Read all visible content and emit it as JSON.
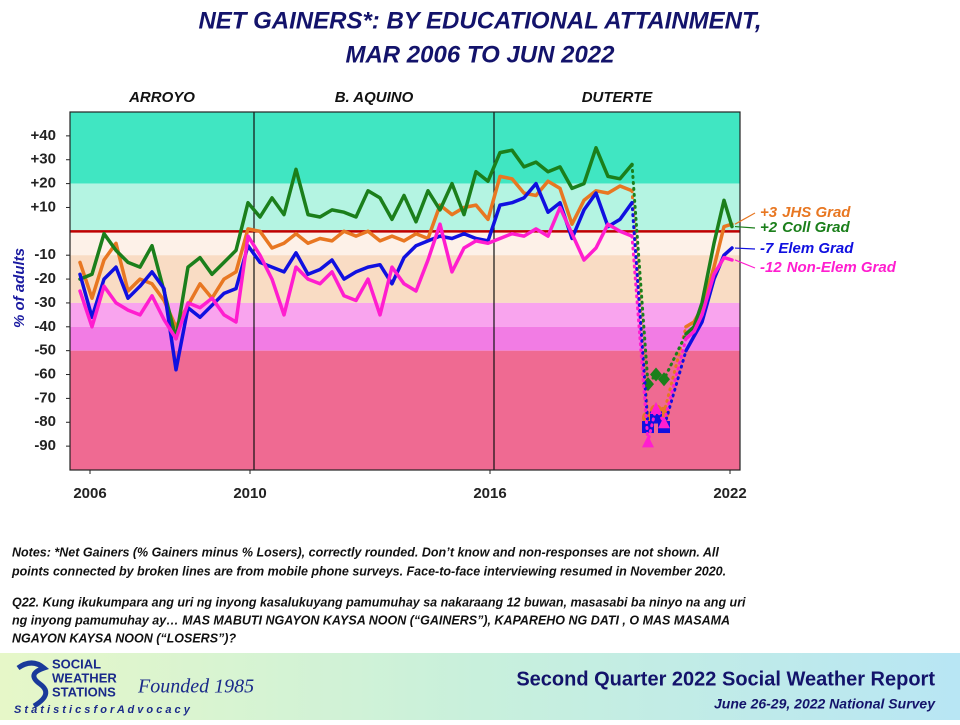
{
  "chart_data": {
    "type": "line",
    "title": [
      "NET GAINERS*: BY EDUCATIONAL ATTAINMENT,",
      "MAR 2006 TO JUN 2022"
    ],
    "y_label": "% of adults",
    "eras": [
      "ARROYO",
      "B. AQUINO",
      "DUTERTE"
    ],
    "dividers": [
      2010.1,
      2016.1
    ],
    "x": [
      2005.75,
      2006.05,
      2006.35,
      2006.65,
      2006.95,
      2007.25,
      2007.55,
      2007.85,
      2008.15,
      2008.45,
      2008.75,
      2009.05,
      2009.35,
      2009.65,
      2009.95,
      2010.25,
      2010.55,
      2010.85,
      2011.15,
      2011.45,
      2011.75,
      2012.05,
      2012.35,
      2012.65,
      2012.95,
      2013.25,
      2013.55,
      2013.85,
      2014.15,
      2014.45,
      2014.75,
      2015.05,
      2015.35,
      2015.65,
      2015.95,
      2016.25,
      2016.55,
      2016.85,
      2017.15,
      2017.45,
      2017.75,
      2018.05,
      2018.35,
      2018.65,
      2018.95,
      2019.25,
      2019.55,
      2019.95,
      2020.15,
      2020.35,
      2020.9,
      2021.1,
      2021.3,
      2021.6,
      2021.85,
      2022.05
    ],
    "xlim": [
      2005.5,
      2022.25
    ],
    "xticks": [
      2006,
      2010,
      2016,
      2022
    ],
    "ylim": [
      -100,
      50
    ],
    "yticks": [
      {
        "value": 40,
        "label": "+40"
      },
      {
        "value": 30,
        "label": "+30"
      },
      {
        "value": 20,
        "label": "+20"
      },
      {
        "value": 10,
        "label": "+10"
      },
      -10,
      -20,
      -30,
      -40,
      -50,
      -60,
      -70,
      -80,
      -90
    ],
    "reference_line": {
      "value": 0,
      "color": "#c00000"
    },
    "bands": [
      {
        "from": 20,
        "to": 50,
        "color": "#40e6c2"
      },
      {
        "from": 0,
        "to": 20,
        "color": "#b4f4e2"
      },
      {
        "from": -10,
        "to": 0,
        "color": "#fdf1e8"
      },
      {
        "from": -30,
        "to": -10,
        "color": "#f9dcc4"
      },
      {
        "from": -40,
        "to": -30,
        "color": "#f9a4ee"
      },
      {
        "from": -50,
        "to": -40,
        "color": "#f27ce4"
      },
      {
        "from": -100,
        "to": -50,
        "color": "#ef6a92"
      }
    ],
    "broken_line_x_range": [
      2019.55,
      2020.9
    ],
    "series": [
      {
        "name": "JHS Grad",
        "end_label": "+3",
        "color": "#e87722",
        "marker": "circle",
        "values": [
          -13,
          -28,
          -12,
          -5,
          -25,
          -20,
          -22,
          -29,
          -40,
          -31,
          -22,
          -28,
          -20,
          -17,
          1,
          0,
          -7,
          -5,
          -1,
          -5,
          -3,
          -4,
          0,
          -2,
          0,
          -4,
          -2,
          -4,
          -1,
          -3,
          11,
          7,
          10,
          11,
          5,
          23,
          22,
          16,
          15,
          21,
          18,
          3,
          13,
          17,
          16,
          19,
          17,
          -78,
          -75,
          -76,
          -40,
          -38,
          -32,
          -15,
          2,
          3
        ]
      },
      {
        "name": "Coll Grad",
        "end_label": "+2",
        "color": "#1b7f1b",
        "marker": "diamond",
        "values": [
          -20,
          -18,
          -1,
          -8,
          -13,
          -15,
          -6,
          -25,
          -45,
          -15,
          -11,
          -18,
          -13,
          -8,
          12,
          6,
          14,
          7,
          26,
          7,
          6,
          9,
          8,
          6,
          17,
          14,
          5,
          15,
          4,
          17,
          9,
          20,
          7,
          25,
          21,
          33,
          34,
          27,
          29,
          25,
          27,
          18,
          20,
          35,
          23,
          22,
          28,
          -64,
          -60,
          -62,
          -43,
          -40,
          -30,
          -5,
          13,
          2
        ]
      },
      {
        "name": "Elem Grad",
        "end_label": "-7",
        "color": "#1010e0",
        "marker": "square",
        "values": [
          -18,
          -36,
          -20,
          -15,
          -28,
          -23,
          -17,
          -24,
          -58,
          -32,
          -36,
          -31,
          -26,
          -24,
          -6,
          -13,
          -15,
          -17,
          -9,
          -18,
          -16,
          -12,
          -20,
          -17,
          -15,
          -14,
          -22,
          -11,
          -6,
          -4,
          -2,
          -3,
          -1,
          -3,
          -4,
          11,
          12,
          14,
          20,
          8,
          12,
          -3,
          9,
          16,
          2,
          5,
          12,
          -82,
          -78,
          -82,
          -50,
          -44,
          -38,
          -20,
          -10,
          -7
        ]
      },
      {
        "name": "Non-Elem Grad",
        "end_label": "-12",
        "color": "#ff1ecf",
        "marker": "triangle",
        "values": [
          -25,
          -40,
          -23,
          -30,
          -33,
          -35,
          -27,
          -37,
          -45,
          -30,
          -32,
          -28,
          -35,
          -38,
          -2,
          -10,
          -20,
          -35,
          -15,
          -20,
          -22,
          -17,
          -27,
          -29,
          -20,
          -35,
          -15,
          -22,
          -25,
          -12,
          3,
          -17,
          -7,
          -4,
          -5,
          -3,
          -1,
          -2,
          1,
          -2,
          10,
          -1,
          -12,
          -7,
          3,
          0,
          -2,
          -88,
          -74,
          -80,
          -45,
          -42,
          -35,
          -18,
          -11,
          -12
        ]
      }
    ]
  },
  "notes": [
    "Notes: *Net Gainers (% Gainers minus % Losers), correctly  rounded. Don’t know and non-responses are not shown. All",
    "points connected by broken lines are from mobile phone surveys. Face-to-face  interviewing resumed in November 2020."
  ],
  "question": [
    "Q22. Kung ikukumpara ang uri ng inyong kasalukuyang pamumuhay sa nakaraang 12 buwan, masasabi ba ninyo na ang uri",
    "ng inyong pamumuhay ay… MAS MABUTI NGAYON KAYSA NOON (“GAINERS”), KAPAREHO NG DATI , O MAS MASAMA",
    "NGAYON KAYSA NOON (“LOSERS”)?"
  ],
  "footer": {
    "org": [
      "SOCIAL",
      "WEATHER",
      "STATIONS"
    ],
    "founded": "Founded 1985",
    "motto": "S t a t i s t i c s   f o r   A d v o c a c y",
    "report": "Second Quarter 2022 Social Weather Report",
    "survey": "June 26-29, 2022 National Survey"
  }
}
